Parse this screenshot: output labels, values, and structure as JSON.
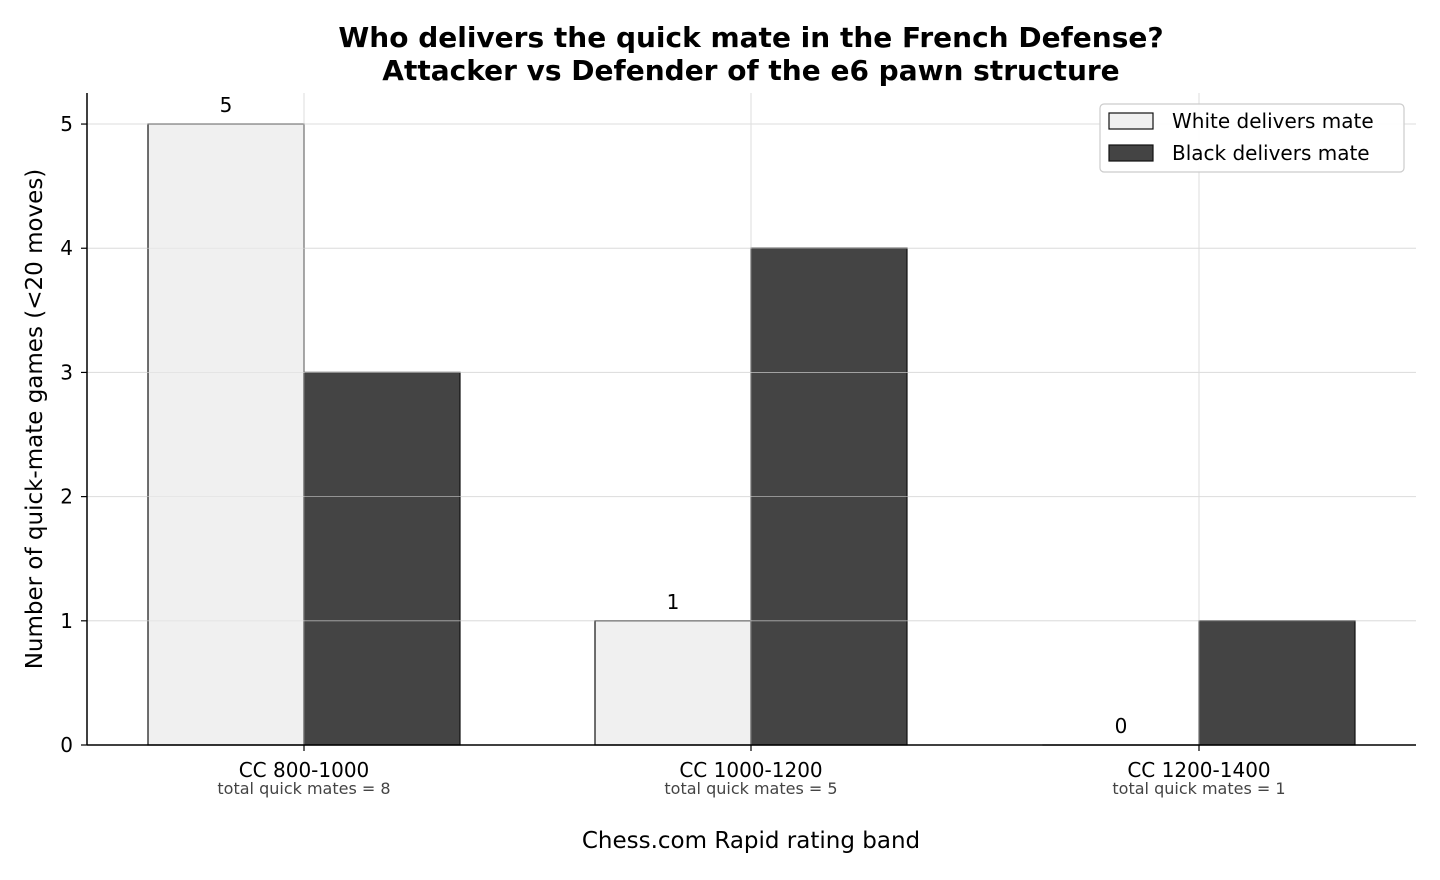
{
  "chart_data": {
    "type": "bar",
    "title": "Who delivers the quick mate in the French Defense?",
    "subtitle": "Attacker vs Defender of the e6 pawn structure",
    "xlabel": "Chess.com Rapid rating band",
    "ylabel": "Number of quick-mate games (<20 moves)",
    "categories": [
      "CC 800-1000",
      "CC 1000-1200",
      "CC 1200-1400"
    ],
    "category_notes": [
      "total quick mates = 8",
      "total quick mates = 5",
      "total quick mates = 1"
    ],
    "series": [
      {
        "name": "White delivers mate",
        "values": [
          5,
          1,
          0
        ],
        "color": "#f0f0f0",
        "labeled": true
      },
      {
        "name": "Black delivers mate",
        "values": [
          3,
          4,
          1
        ],
        "color": "#444444",
        "labeled": false
      }
    ],
    "ylim": [
      0,
      5.25
    ],
    "yticks": [
      "0",
      "1",
      "2",
      "3",
      "4",
      "5"
    ],
    "grid": true,
    "legend_position": "top-right"
  }
}
